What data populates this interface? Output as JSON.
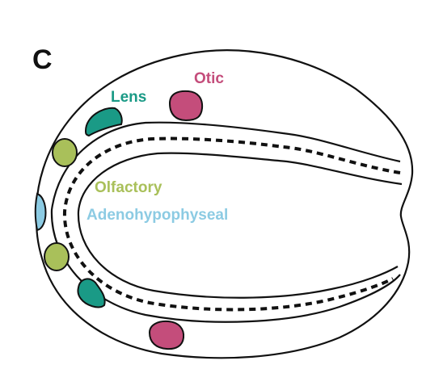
{
  "panel_label": "C",
  "labels": {
    "otic": "Otic",
    "lens": "Lens",
    "olfactory": "Olfactory",
    "adenohypophyseal": "Adenohypophyseal"
  },
  "colors": {
    "otic": "#c44d7b",
    "lens": "#1a9a86",
    "olfactory": "#a9c05a",
    "adenohypophyseal": "#8ccbe3",
    "outline": "#111111"
  }
}
